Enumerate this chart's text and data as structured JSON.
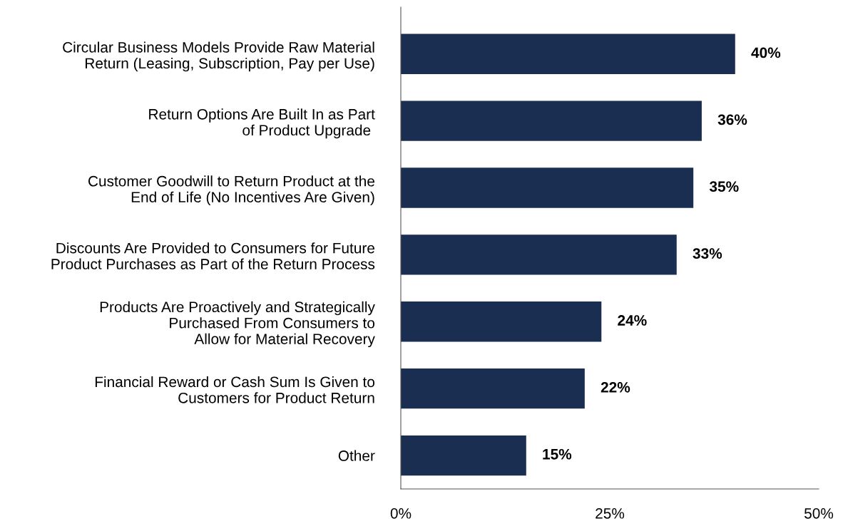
{
  "chart_data": {
    "type": "bar",
    "orientation": "horizontal",
    "categories": [
      "Circular Business Models Provide Raw Material\nReturn (Leasing, Subscription, Pay per Use)",
      "Return Options Are Built In as Part\nof Product Upgrade ",
      "Customer Goodwill to Return Product at the\nEnd of Life (No Incentives Are Given)",
      "Discounts Are Provided to Consumers for Future\nProduct Purchases as Part of the Return Process",
      "Products Are Proactively and Strategically\nPurchased From Consumers to\nAllow for Material Recovery",
      "Financial Reward or Cash Sum Is Given to\nCustomers for Product Return",
      "Other"
    ],
    "values": [
      40,
      36,
      35,
      33,
      24,
      22,
      15
    ],
    "value_labels": [
      "40%",
      "36%",
      "35%",
      "33%",
      "24%",
      "22%",
      "15%"
    ],
    "color": "#1a2e52",
    "xlim": [
      0,
      50
    ],
    "xticks": [
      {
        "value": 0,
        "label": "0%"
      },
      {
        "value": 25,
        "label": "25%"
      },
      {
        "value": 50,
        "label": "50%"
      }
    ],
    "grid": false
  }
}
